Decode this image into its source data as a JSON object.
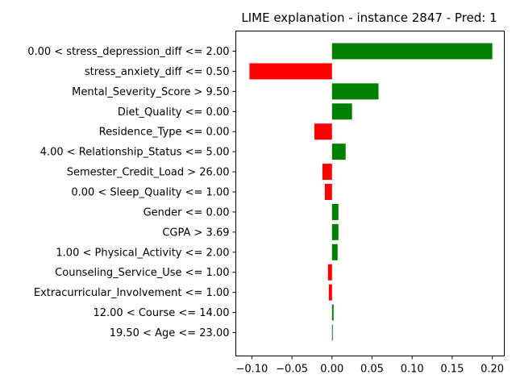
{
  "chart_data": {
    "type": "bar",
    "orientation": "horizontal",
    "title": "LIME explanation - instance 2847 - Pred: 1",
    "xlabel": "",
    "ylabel": "",
    "xlim": [
      -0.12,
      0.215
    ],
    "grid": false,
    "legend": "none",
    "x_ticks": [
      "−0.10",
      "−0.05",
      "0.00",
      "0.05",
      "0.10",
      "0.15",
      "0.20"
    ],
    "x_tick_values": [
      -0.1,
      -0.05,
      0.0,
      0.05,
      0.1,
      0.15,
      0.2
    ],
    "categories": [
      "0.00 < stress_depression_diff <= 2.00",
      "stress_anxiety_diff <= 0.50",
      "Mental_Severity_Score > 9.50",
      "Diet_Quality <= 0.00",
      "Residence_Type <= 0.00",
      "4.00 < Relationship_Status <= 5.00",
      "Semester_Credit_Load > 26.00",
      "0.00 < Sleep_Quality <= 1.00",
      "Gender <= 0.00",
      "CGPA > 3.69",
      "1.00 < Physical_Activity <= 2.00",
      "Counseling_Service_Use <= 1.00",
      "Extracurricular_Involvement <= 1.00",
      "12.00 < Course <= 14.00",
      "19.50 < Age <= 23.00"
    ],
    "values": [
      0.2,
      -0.103,
      0.058,
      0.025,
      -0.022,
      0.017,
      -0.012,
      -0.009,
      0.008,
      0.008,
      0.007,
      -0.005,
      -0.004,
      0.002,
      0.001
    ],
    "colors": {
      "positive": "#008000",
      "negative": "#ff0000"
    }
  }
}
